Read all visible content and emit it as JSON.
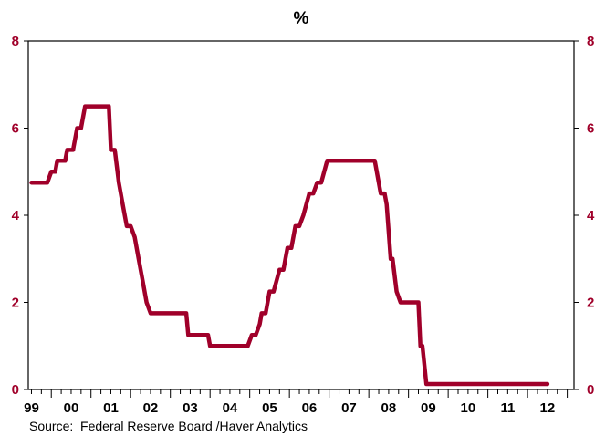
{
  "chart_data": {
    "type": "line",
    "unit_label": "%",
    "ylim": [
      0,
      8
    ],
    "y_ticks": [
      0,
      2,
      4,
      6,
      8
    ],
    "x_ticks": [
      "99",
      "00",
      "01",
      "02",
      "03",
      "04",
      "05",
      "06",
      "07",
      "08",
      "09",
      "10",
      "11",
      "12"
    ],
    "xlim": [
      1998.92,
      2012.67
    ],
    "grid": false,
    "line_color": "#A0002A",
    "tick_color": "#A0002A",
    "series": [
      {
        "values": [
          [
            1999.0,
            4.75
          ],
          [
            1999.4,
            4.75
          ],
          [
            1999.5,
            5.0
          ],
          [
            1999.6,
            5.0
          ],
          [
            1999.65,
            5.25
          ],
          [
            1999.85,
            5.25
          ],
          [
            1999.9,
            5.5
          ],
          [
            2000.05,
            5.5
          ],
          [
            2000.1,
            5.75
          ],
          [
            2000.15,
            6.0
          ],
          [
            2000.25,
            6.0
          ],
          [
            2000.35,
            6.5
          ],
          [
            2000.95,
            6.5
          ],
          [
            2001.0,
            5.5
          ],
          [
            2001.1,
            5.5
          ],
          [
            2001.2,
            4.75
          ],
          [
            2001.3,
            4.25
          ],
          [
            2001.35,
            4.0
          ],
          [
            2001.4,
            3.75
          ],
          [
            2001.5,
            3.75
          ],
          [
            2001.6,
            3.5
          ],
          [
            2001.7,
            3.0
          ],
          [
            2001.8,
            2.5
          ],
          [
            2001.9,
            2.0
          ],
          [
            2002.0,
            1.75
          ],
          [
            2002.9,
            1.75
          ],
          [
            2002.95,
            1.25
          ],
          [
            2003.45,
            1.25
          ],
          [
            2003.5,
            1.0
          ],
          [
            2004.45,
            1.0
          ],
          [
            2004.55,
            1.25
          ],
          [
            2004.65,
            1.25
          ],
          [
            2004.75,
            1.5
          ],
          [
            2004.8,
            1.75
          ],
          [
            2004.9,
            1.75
          ],
          [
            2005.0,
            2.25
          ],
          [
            2005.1,
            2.25
          ],
          [
            2005.25,
            2.75
          ],
          [
            2005.35,
            2.75
          ],
          [
            2005.45,
            3.25
          ],
          [
            2005.55,
            3.25
          ],
          [
            2005.65,
            3.75
          ],
          [
            2005.75,
            3.75
          ],
          [
            2005.85,
            4.0
          ],
          [
            2006.0,
            4.5
          ],
          [
            2006.1,
            4.5
          ],
          [
            2006.2,
            4.75
          ],
          [
            2006.3,
            4.75
          ],
          [
            2006.45,
            5.25
          ],
          [
            2007.65,
            5.25
          ],
          [
            2007.8,
            4.5
          ],
          [
            2007.9,
            4.5
          ],
          [
            2007.95,
            4.25
          ],
          [
            2008.05,
            3.0
          ],
          [
            2008.1,
            3.0
          ],
          [
            2008.2,
            2.25
          ],
          [
            2008.3,
            2.0
          ],
          [
            2008.75,
            2.0
          ],
          [
            2008.8,
            1.0
          ],
          [
            2008.85,
            1.0
          ],
          [
            2008.95,
            0.125
          ],
          [
            2012.0,
            0.125
          ]
        ]
      }
    ]
  },
  "source_text": "Source:  Federal Reserve Board /Haver Analytics"
}
